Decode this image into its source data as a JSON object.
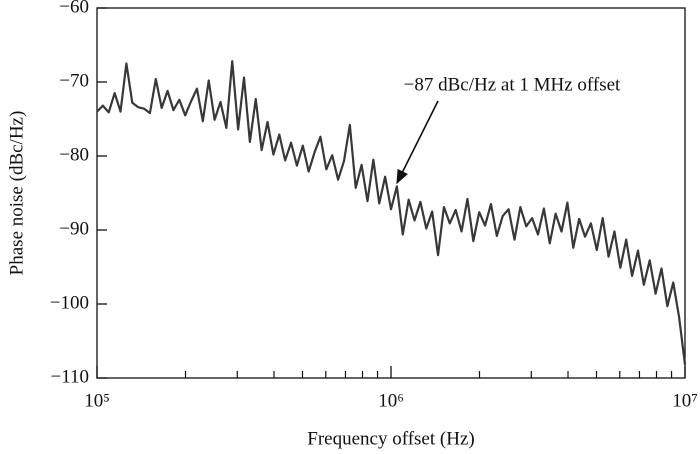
{
  "chart_data": {
    "type": "line",
    "annotation": "−87 dBc/Hz at 1 MHz offset",
    "x_label": "Frequency offset (Hz)",
    "y_label": "Phase noise (dBc/Hz)",
    "xscale": "log",
    "xlim": [
      100000,
      10000000
    ],
    "xticks": [
      {
        "value": 100000,
        "label": "10⁵"
      },
      {
        "value": 1000000,
        "label": "10⁶"
      },
      {
        "value": 10000000,
        "label": "10⁷"
      }
    ],
    "xminorticks": [
      200000,
      300000,
      400000,
      500000,
      600000,
      700000,
      800000,
      900000,
      2000000,
      3000000,
      4000000,
      5000000,
      6000000,
      7000000,
      8000000,
      9000000
    ],
    "ylim": [
      -110,
      -60
    ],
    "yticks": [
      {
        "value": -110,
        "label": "−110"
      },
      {
        "value": -100,
        "label": "−100"
      },
      {
        "value": -90,
        "label": "−90"
      },
      {
        "value": -80,
        "label": "−80"
      },
      {
        "value": -70,
        "label": "−70"
      },
      {
        "value": -60,
        "label": "−60"
      }
    ],
    "series": [
      {
        "color": "#383838",
        "x": [
          100000,
          104713,
          109648,
          114815,
          120226,
          125893,
          131826,
          138038,
          144544,
          151356,
          158489,
          165959,
          173780,
          181970,
          190546,
          199526,
          208930,
          218776,
          229087,
          239883,
          251189,
          263027,
          275423,
          288403,
          301995,
          316228,
          331131,
          346737,
          363078,
          380189,
          398107,
          416869,
          436516,
          457088,
          478630,
          501187,
          524807,
          549541,
          575440,
          602560,
          630957,
          660693,
          691831,
          724436,
          758578,
          794328,
          831764,
          870964,
          912011,
          954993,
          1000000,
          1047129,
          1096478,
          1148154,
          1202264,
          1258925,
          1318257,
          1380384,
          1445440,
          1513561,
          1584893,
          1659587,
          1737801,
          1819701,
          1905461,
          1995262,
          2089296,
          2187762,
          2290868,
          2398833,
          2511886,
          2630268,
          2754229,
          2884032,
          3019952,
          3162278,
          3311311,
          3467369,
          3630781,
          3801894,
          3981072,
          4168694,
          4365158,
          4570882,
          4786301,
          5011872,
          5248075,
          5495409,
          5754399,
          6025596,
          6309573,
          6606934,
          6918310,
          7244360,
          7585776,
          7943282,
          8317638,
          8709636,
          9120108,
          9549926,
          10000000
        ],
        "values": [
          -74,
          -73.2,
          -74.1,
          -71.5,
          -74,
          -67.5,
          -72.8,
          -73.4,
          -73.6,
          -74.2,
          -69.6,
          -73.5,
          -71.2,
          -73.8,
          -72.4,
          -74.5,
          -72.6,
          -70.9,
          -75.3,
          -69.8,
          -75.1,
          -72.7,
          -76.2,
          -67.2,
          -76.4,
          -69.4,
          -78.1,
          -72.3,
          -79.2,
          -75.4,
          -79.8,
          -77.1,
          -80.6,
          -78.2,
          -81.3,
          -78.6,
          -82.1,
          -79.5,
          -77.4,
          -81.8,
          -79.9,
          -83.2,
          -80.7,
          -75.8,
          -84.3,
          -81.2,
          -86.1,
          -80.5,
          -86.4,
          -82.8,
          -87.2,
          -84.1,
          -90.6,
          -85.9,
          -88.7,
          -86.2,
          -89.8,
          -87.5,
          -93.4,
          -86.9,
          -89.1,
          -87.3,
          -90.2,
          -85.8,
          -91.5,
          -87.6,
          -89.4,
          -86.5,
          -90.8,
          -88.1,
          -87.2,
          -91.3,
          -86.9,
          -89.5,
          -88.4,
          -90.6,
          -87.1,
          -91.8,
          -87.8,
          -90.2,
          -86.3,
          -92.4,
          -88.5,
          -90.9,
          -89.1,
          -92.7,
          -88.4,
          -93.6,
          -90.2,
          -95.1,
          -91.3,
          -96.2,
          -92.8,
          -97.4,
          -94.1,
          -98.6,
          -95.2,
          -100.3,
          -97.1,
          -101.8,
          -108.2
        ]
      }
    ]
  }
}
